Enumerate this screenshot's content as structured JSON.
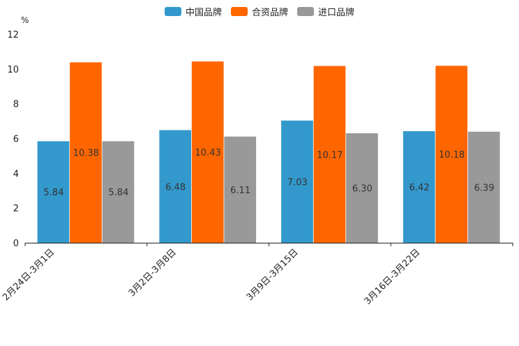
{
  "chart_data": {
    "type": "bar",
    "unit_label": "%",
    "categories": [
      "2月24日-3月1日",
      "3月2日-3月8日",
      "3月9日-3月15日",
      "3月16日-3月22日"
    ],
    "series": [
      {
        "name": "中国品牌",
        "color": "#3399cc",
        "values": [
          5.84,
          6.48,
          7.03,
          6.42
        ],
        "labels": [
          "5.84",
          "6.48",
          "7.03",
          "6.42"
        ]
      },
      {
        "name": "合资品牌",
        "color": "#ff6600",
        "values": [
          10.38,
          10.43,
          10.17,
          10.18
        ],
        "labels": [
          "10.38",
          "10.43",
          "10.17",
          "10.18"
        ]
      },
      {
        "name": "进口品牌",
        "color": "#999999",
        "values": [
          5.84,
          6.11,
          6.3,
          6.39
        ],
        "labels": [
          "5.84",
          "6.11",
          "6.30",
          "6.39"
        ]
      }
    ],
    "y_ticks": [
      "0",
      "2",
      "4",
      "6",
      "8",
      "10",
      "12"
    ],
    "ylim": [
      0,
      12
    ],
    "legend_position": "top-center",
    "grid": false
  }
}
